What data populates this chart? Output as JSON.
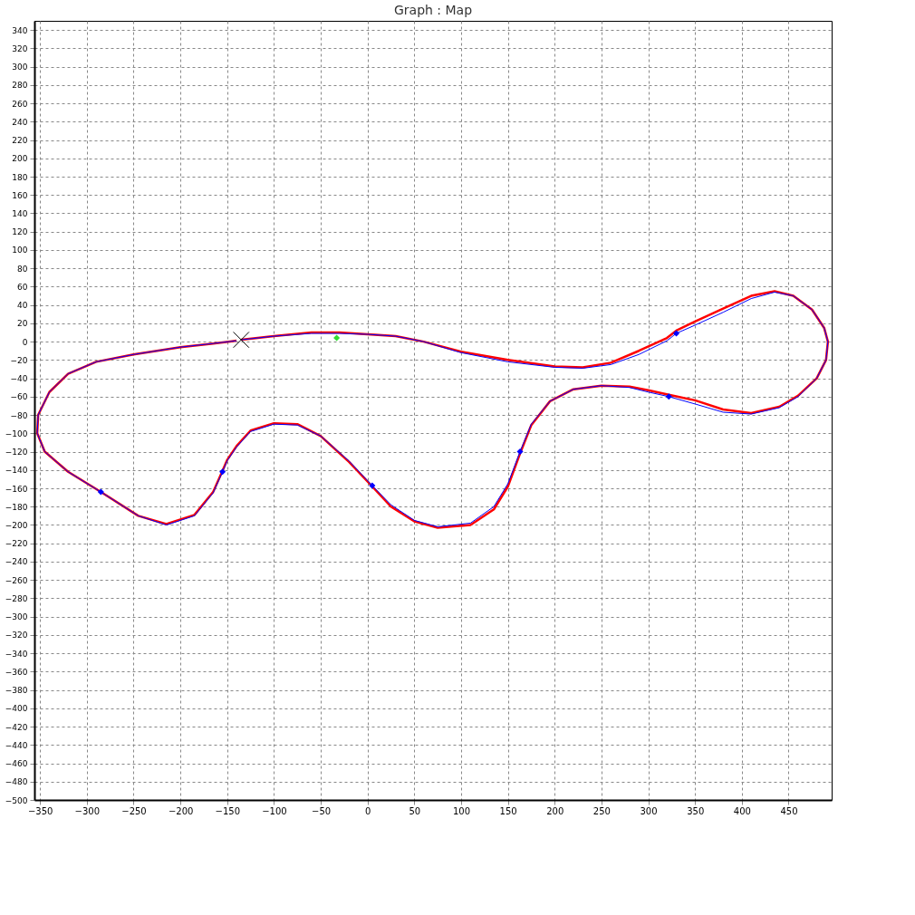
{
  "chart_data": {
    "type": "line",
    "title": "Graph : Map",
    "xlim": [
      -356,
      496
    ],
    "ylim": [
      -500,
      350
    ],
    "xticks": [
      -350,
      -300,
      -250,
      -200,
      -150,
      -100,
      -50,
      0,
      50,
      100,
      150,
      200,
      250,
      300,
      350,
      400,
      450
    ],
    "yticks": [
      -500,
      -480,
      -460,
      -440,
      -420,
      -400,
      -380,
      -360,
      -340,
      -320,
      -300,
      -280,
      -260,
      -240,
      -220,
      -200,
      -180,
      -160,
      -140,
      -120,
      -100,
      -80,
      -60,
      -40,
      -20,
      0,
      20,
      40,
      60,
      80,
      100,
      120,
      140,
      160,
      180,
      200,
      220,
      240,
      260,
      280,
      300,
      320,
      340
    ],
    "grid": true,
    "series": [
      {
        "color": "#ff0000",
        "marker": "none",
        "line_style": "solid",
        "x": [
          -135,
          -100,
          -60,
          -30,
          0,
          30,
          60,
          100,
          150,
          200,
          230,
          260,
          290,
          320,
          330,
          350,
          380,
          410,
          435,
          455,
          475,
          488,
          492,
          490,
          480,
          460,
          440,
          410,
          380,
          350,
          322,
          300,
          280,
          250,
          220,
          195,
          175,
          163,
          150,
          135,
          110,
          75,
          50,
          25,
          5,
          -20,
          -50,
          -75,
          -100,
          -125,
          -140,
          -150,
          -155,
          -165,
          -185,
          -215,
          -245,
          -285,
          -320,
          -345,
          -353,
          -352,
          -340,
          -320,
          -290,
          -250,
          -200,
          -165,
          -140
        ],
        "values": [
          2,
          6,
          10,
          10,
          8,
          6,
          0,
          -11,
          -20,
          -27,
          -28,
          -23,
          -10,
          4,
          12,
          22,
          36,
          50,
          55,
          50,
          35,
          15,
          0,
          -20,
          -40,
          -59,
          -71,
          -78,
          -74,
          -64,
          -58,
          -53,
          -49,
          -48,
          -52,
          -65,
          -91,
          -122,
          -158,
          -183,
          -200,
          -203,
          -196,
          -180,
          -158,
          -131,
          -103,
          -90,
          -89,
          -97,
          -114,
          -129,
          -141,
          -164,
          -189,
          -199,
          -190,
          -164,
          -142,
          -120,
          -100,
          -80,
          -55,
          -35,
          -22,
          -14,
          -6,
          -2,
          1
        ]
      },
      {
        "color": "#0000ff",
        "marker": "none",
        "line_style": "solid",
        "x": [
          -135,
          -100,
          -60,
          -30,
          0,
          30,
          60,
          100,
          150,
          200,
          230,
          260,
          290,
          320,
          330,
          350,
          380,
          410,
          435,
          455,
          475,
          488,
          492,
          490,
          480,
          460,
          440,
          410,
          380,
          350,
          322,
          300,
          280,
          250,
          220,
          195,
          175,
          163,
          150,
          135,
          110,
          75,
          50,
          25,
          5,
          -20,
          -50,
          -75,
          -100,
          -125,
          -140,
          -150,
          -155,
          -165,
          -185,
          -215,
          -245,
          -285,
          -320,
          -345,
          -353,
          -352,
          -340,
          -320,
          -290,
          -250,
          -200,
          -165,
          -140
        ],
        "values": [
          2,
          6,
          9,
          9,
          8,
          6,
          0,
          -12,
          -22,
          -28,
          -29,
          -25,
          -14,
          1,
          9,
          18,
          32,
          47,
          54,
          50,
          35,
          15,
          0,
          -20,
          -40,
          -60,
          -72,
          -79,
          -77,
          -68,
          -60,
          -55,
          -50,
          -48,
          -52,
          -65,
          -90,
          -120,
          -155,
          -180,
          -198,
          -202,
          -195,
          -178,
          -157,
          -130,
          -103,
          -91,
          -90,
          -98,
          -115,
          -130,
          -142,
          -165,
          -190,
          -200,
          -190,
          -164,
          -142,
          -120,
          -100,
          -80,
          -55,
          -35,
          -22,
          -14,
          -6,
          -2,
          1
        ]
      },
      {
        "type": "scatter",
        "color": "#0000ff",
        "marker": "diamond",
        "x": [
          -285,
          -155,
          5,
          163,
          322,
          330
        ],
        "values": [
          -164,
          -142,
          -157,
          -120,
          -60,
          9
        ]
      },
      {
        "type": "scatter",
        "color": "#33dd33",
        "marker": "diamond",
        "x": [
          -33
        ],
        "values": [
          4
        ]
      },
      {
        "type": "scatter",
        "color": "#000000",
        "marker": "cross",
        "x": [
          -135
        ],
        "values": [
          2
        ]
      }
    ]
  }
}
